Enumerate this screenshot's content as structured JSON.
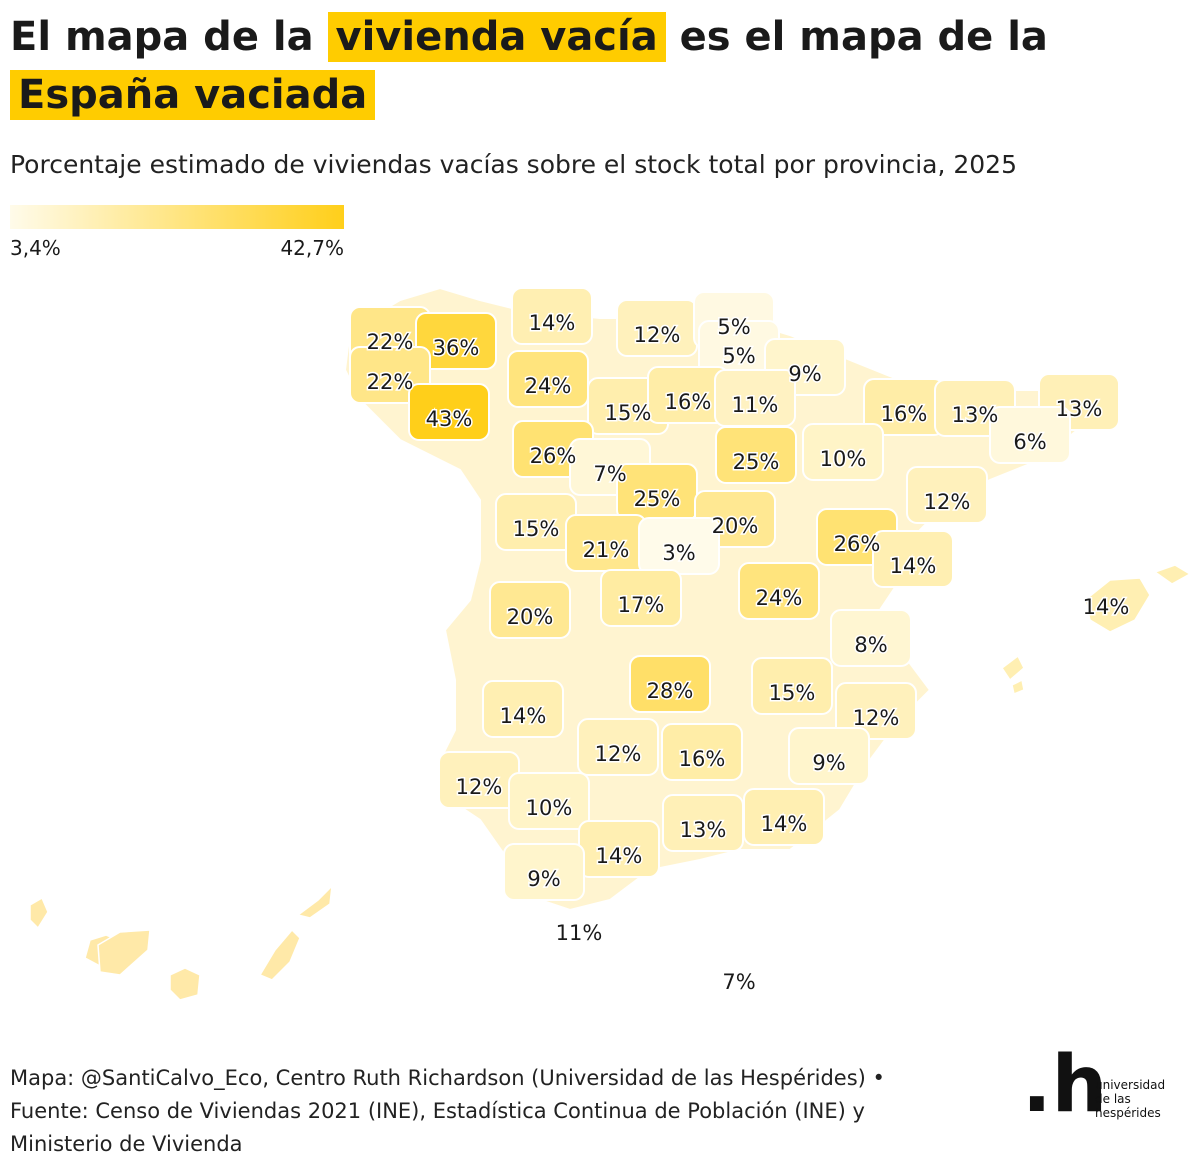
{
  "title": {
    "part1": "El mapa de la",
    "hl1": "vivienda vacía",
    "part2": "es el mapa de la",
    "hl2": "España vaciada"
  },
  "subtitle": "Porcentaje estimado de viviendas vacías sobre el stock total por provincia, 2025",
  "legend": {
    "min": "3,4%",
    "max": "42,7%",
    "min_value": 3.4,
    "max_value": 42.7,
    "color_low": "#fffbea",
    "color_high": "#ffcf1a"
  },
  "accent_color": "#ffcc00",
  "provinces": [
    {
      "name": "A Coruña",
      "label": "22%",
      "value": 22
    },
    {
      "name": "Lugo",
      "label": "36%",
      "value": 36
    },
    {
      "name": "Pontevedra",
      "label": "22%",
      "value": 22
    },
    {
      "name": "Ourense",
      "label": "43%",
      "value": 43
    },
    {
      "name": "Asturias",
      "label": "14%",
      "value": 14
    },
    {
      "name": "Cantabria",
      "label": "12%",
      "value": 12
    },
    {
      "name": "Bizkaia",
      "label": "5%",
      "value": 5
    },
    {
      "name": "Gipuzkoa",
      "label": "5%",
      "value": 5
    },
    {
      "name": "Navarra",
      "label": "9%",
      "value": 9
    },
    {
      "name": "León",
      "label": "24%",
      "value": 24
    },
    {
      "name": "Palencia",
      "label": "15%",
      "value": 15
    },
    {
      "name": "Burgos",
      "label": "16%",
      "value": 16
    },
    {
      "name": "Álava",
      "label": "11%",
      "value": 11
    },
    {
      "name": "Huesca",
      "label": "16%",
      "value": 16
    },
    {
      "name": "Lleida",
      "label": "13%",
      "value": 13
    },
    {
      "name": "Girona",
      "label": "13%",
      "value": 13
    },
    {
      "name": "Barcelona",
      "label": "6%",
      "value": 6
    },
    {
      "name": "Zamora",
      "label": "26%",
      "value": 26
    },
    {
      "name": "Valladolid",
      "label": "7%",
      "value": 7
    },
    {
      "name": "Soria",
      "label": "25%",
      "value": 25
    },
    {
      "name": "La Rioja",
      "label": "10%",
      "value": 10
    },
    {
      "name": "Segovia",
      "label": "25%",
      "value": 25
    },
    {
      "name": "Tarragona",
      "label": "12%",
      "value": 12
    },
    {
      "name": "Salamanca",
      "label": "15%",
      "value": 15
    },
    {
      "name": "Guadalajara",
      "label": "20%",
      "value": 20
    },
    {
      "name": "Ávila",
      "label": "21%",
      "value": 21
    },
    {
      "name": "Madrid",
      "label": "3%",
      "value": 3
    },
    {
      "name": "Teruel",
      "label": "26%",
      "value": 26
    },
    {
      "name": "Castellón",
      "label": "14%",
      "value": 14
    },
    {
      "name": "Cáceres",
      "label": "20%",
      "value": 20
    },
    {
      "name": "Toledo",
      "label": "17%",
      "value": 17
    },
    {
      "name": "Cuenca",
      "label": "24%",
      "value": 24
    },
    {
      "name": "Illes Balears",
      "label": "14%",
      "value": 14
    },
    {
      "name": "Valencia",
      "label": "8%",
      "value": 8
    },
    {
      "name": "Ciudad Real",
      "label": "28%",
      "value": 28
    },
    {
      "name": "Albacete",
      "label": "15%",
      "value": 15
    },
    {
      "name": "Badajoz",
      "label": "14%",
      "value": 14
    },
    {
      "name": "Alicante",
      "label": "12%",
      "value": 12
    },
    {
      "name": "Córdoba",
      "label": "12%",
      "value": 12
    },
    {
      "name": "Jaén",
      "label": "16%",
      "value": 16
    },
    {
      "name": "Murcia",
      "label": "9%",
      "value": 9
    },
    {
      "name": "Huelva",
      "label": "12%",
      "value": 12
    },
    {
      "name": "Sevilla",
      "label": "10%",
      "value": 10
    },
    {
      "name": "Granada",
      "label": "13%",
      "value": 13
    },
    {
      "name": "Almería",
      "label": "14%",
      "value": 14
    },
    {
      "name": "Málaga",
      "label": "14%",
      "value": 14
    },
    {
      "name": "Cádiz",
      "label": "9%",
      "value": 9
    },
    {
      "name": "Ceuta",
      "label": "11%",
      "value": 11
    },
    {
      "name": "Melilla",
      "label": "7%",
      "value": 7
    }
  ],
  "footer": {
    "line1": "Mapa: @SantiCalvo_Eco, Centro Ruth Richardson (Universidad de las Hespérides) •",
    "line2": "Fuente: Censo de Viviendas 2021 (INE), Estadística Continua de Población (INE) y",
    "line3": "Ministerio de Vivienda"
  },
  "logo": {
    "mark": ".h",
    "line1": "universidad",
    "line2": "de las",
    "line3": "hespérides"
  }
}
